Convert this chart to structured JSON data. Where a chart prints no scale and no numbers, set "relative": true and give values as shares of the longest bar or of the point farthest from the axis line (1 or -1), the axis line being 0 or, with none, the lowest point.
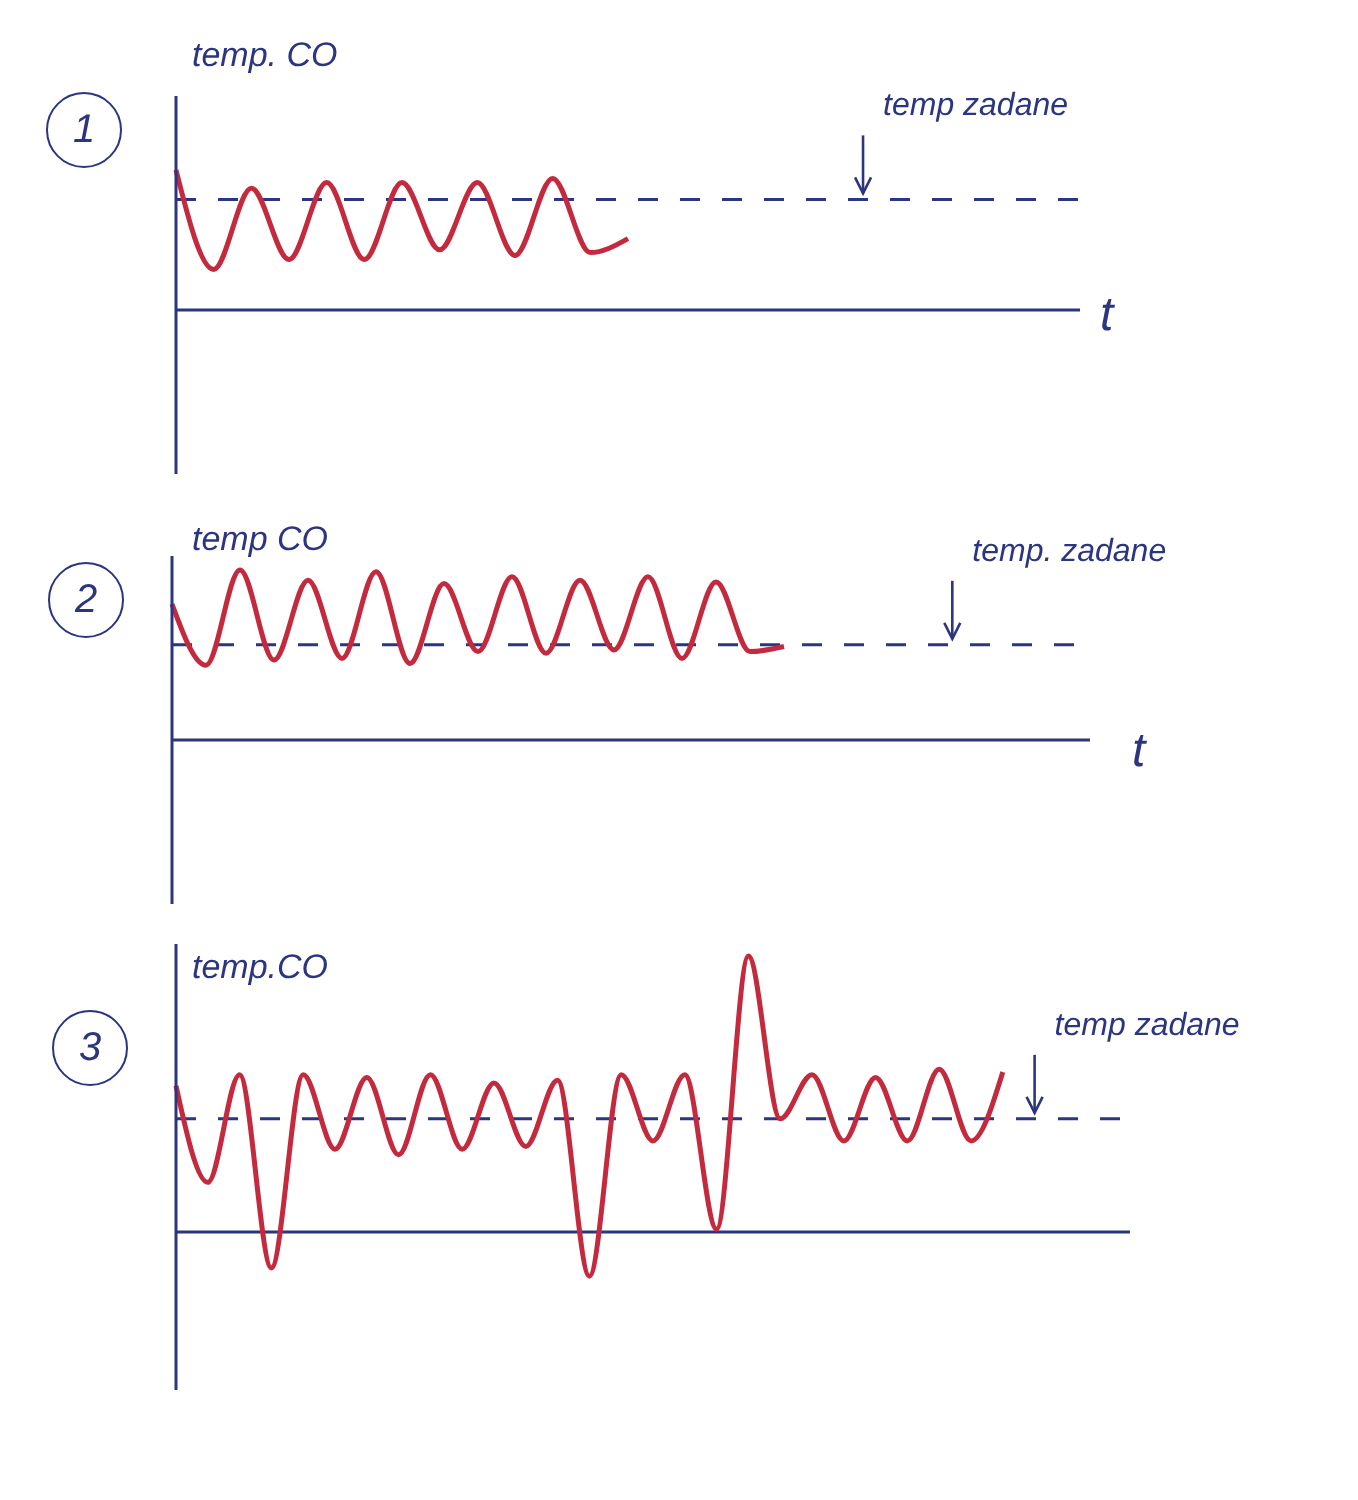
{
  "chart_data": [
    {
      "type": "line",
      "title": "1",
      "ylabel": "temp. CO",
      "xlabel": "t",
      "relative": true,
      "categories": [
        null,
        null,
        null,
        null,
        null,
        null,
        null,
        null,
        null,
        null,
        null,
        null,
        null,
        null,
        null,
        null,
        null,
        null,
        null,
        null,
        null,
        null,
        null,
        null,
        null
      ],
      "values": [
        1,
        0.29,
        0.87,
        0.36,
        0.91,
        0.36,
        0.91,
        0.43,
        0.91,
        0.39,
        0.94,
        0.41,
        0.51,
        null,
        null,
        null,
        null,
        null,
        null,
        null,
        null,
        null,
        null,
        null,
        null
      ],
      "color": "#c42a3e",
      "ref_lines": [
        {
          "axis": "y",
          "value": 0.79,
          "label": "temp zadane",
          "line_style": "dashed",
          "color": "#2b3580"
        }
      ]
    },
    {
      "type": "line",
      "title": "2",
      "ylabel": "temp CO",
      "xlabel": "t",
      "relative": true,
      "categories": [
        null,
        null,
        null,
        null,
        null,
        null,
        null,
        null,
        null,
        null,
        null,
        null,
        null,
        null,
        null,
        null,
        null,
        null,
        null,
        null,
        null,
        null,
        null,
        null,
        null,
        null,
        null,
        null
      ],
      "values": [
        0.8,
        0.44,
        1,
        0.47,
        0.94,
        0.48,
        0.99,
        0.45,
        0.92,
        0.52,
        0.96,
        0.51,
        0.94,
        0.53,
        0.96,
        0.48,
        0.93,
        0.52,
        0.55,
        null,
        null,
        null,
        null,
        null,
        null,
        null,
        null,
        null
      ],
      "color": "#c42a3e",
      "ref_lines": [
        {
          "axis": "y",
          "value": 0.56,
          "label": "temp. zadane",
          "line_style": "dashed",
          "color": "#2b3580"
        }
      ]
    },
    {
      "type": "line",
      "title": "3",
      "ylabel": "temp.CO",
      "relative": true,
      "categories": [
        null,
        null,
        null,
        null,
        null,
        null,
        null,
        null,
        null,
        null,
        null,
        null,
        null,
        null,
        null,
        null,
        null,
        null,
        null,
        null,
        null,
        null,
        null,
        null,
        null,
        null,
        null,
        null,
        null,
        null,
        null
      ],
      "values": [
        0.53,
        0.18,
        0.57,
        -0.13,
        0.57,
        0.3,
        0.56,
        0.28,
        0.57,
        0.3,
        0.54,
        0.31,
        0.55,
        -0.16,
        0.57,
        0.33,
        0.57,
        0.01,
        1,
        0.41,
        0.57,
        0.33,
        0.56,
        0.33,
        0.59,
        0.33,
        0.58,
        null,
        null,
        null,
        null
      ],
      "color": "#c42a3e",
      "ref_lines": [
        {
          "axis": "y",
          "value": 0.41,
          "label": "temp zadane",
          "line_style": "dashed",
          "color": "#2b3580"
        },
        {
          "axis": "y",
          "value": 0,
          "line_style": "solid",
          "color": "#2b3580"
        }
      ]
    }
  ]
}
